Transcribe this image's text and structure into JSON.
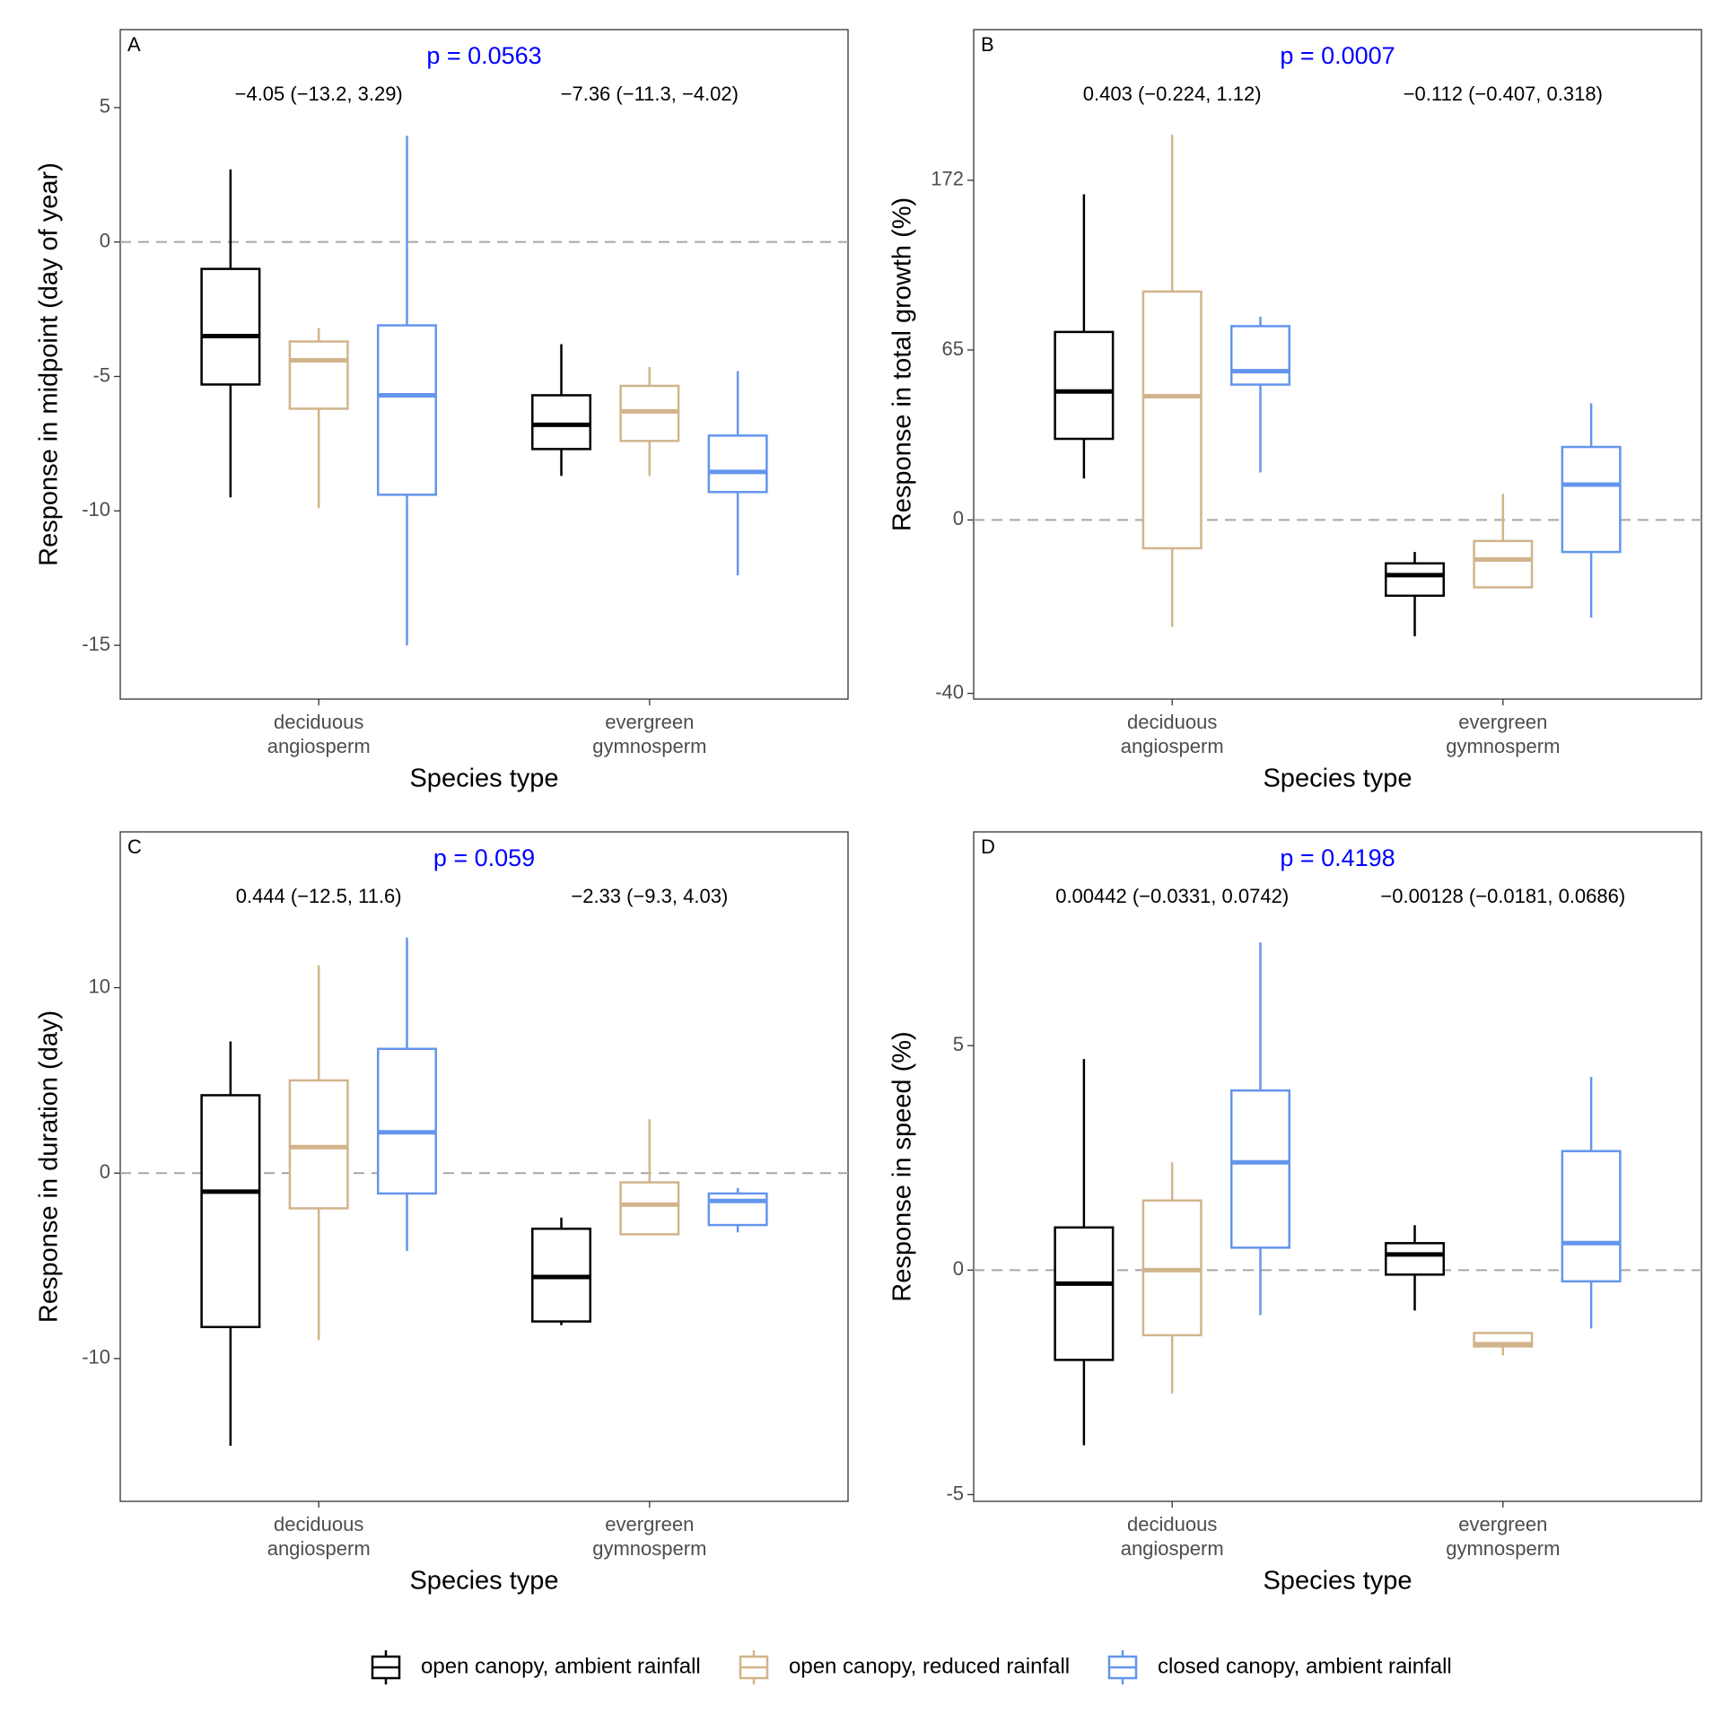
{
  "chart_data": [
    {
      "type": "box",
      "panel": "A",
      "annotation": "p = 0.0563",
      "annotation_color": "#0000ff",
      "group_annotations": [
        "−4.05 (−13.2, 3.29)",
        "−7.36 (−11.3, −4.02)"
      ],
      "xlabel": "Species type",
      "ylabel": "Response in midpoint (day of year)",
      "categories": [
        [
          "deciduous",
          "angiosperm"
        ],
        [
          "evergreen",
          "gymnosperm"
        ]
      ],
      "ylim": [
        -17.0,
        7.9
      ],
      "yticks": [
        -15,
        -10,
        -5,
        0,
        5
      ],
      "hline": 0,
      "series": [
        {
          "name": "open canopy, ambient rainfall",
          "color": "#000000",
          "values": [
            {
              "min": -9.5,
              "q1": -5.3,
              "median": -3.5,
              "q3": -1.0,
              "max": 2.7
            },
            {
              "min": -8.7,
              "q1": -7.7,
              "median": -6.8,
              "q3": -5.7,
              "max": -3.8
            }
          ]
        },
        {
          "name": "open canopy, reduced rainfall",
          "color": "#d2b48c",
          "values": [
            {
              "min": -9.9,
              "q1": -6.2,
              "median": -4.4,
              "q3": -3.7,
              "max": -3.2
            },
            {
              "min": -8.7,
              "q1": -7.4,
              "median": -6.3,
              "q3": -5.35,
              "max": -4.65
            }
          ]
        },
        {
          "name": "closed canopy, ambient rainfall",
          "color": "#6495ed",
          "values": [
            {
              "min": -15.0,
              "q1": -9.4,
              "median": -5.7,
              "q3": -3.1,
              "max": 3.95
            },
            {
              "min": -12.4,
              "q1": -9.3,
              "median": -8.55,
              "q3": -7.2,
              "max": -4.8
            }
          ]
        }
      ]
    },
    {
      "type": "box",
      "panel": "B",
      "annotation": "p = 0.0007",
      "annotation_color": "#0000ff",
      "group_annotations": [
        "0.403 (−0.224, 1.12)",
        "−0.112 (−0.407, 0.318)"
      ],
      "xlabel": "Species type",
      "ylabel": "Response in total growth (%)",
      "categories": [
        [
          "deciduous",
          "angiosperm"
        ],
        [
          "evergreen",
          "gymnosperm"
        ]
      ],
      "yscale": "log",
      "yshift": 100,
      "ylim": [
        -41,
        324
      ],
      "yticks": [
        -40,
        0,
        65,
        172
      ],
      "hline": 0,
      "series": [
        {
          "name": "open canopy, ambient rainfall",
          "color": "#000000",
          "values": [
            {
              "min": 13,
              "q1": 27,
              "median": 46,
              "q3": 74,
              "max": 161
            },
            {
              "min": -29,
              "q1": -20,
              "median": -15,
              "q3": -12,
              "max": -9
            }
          ]
        },
        {
          "name": "open canopy, reduced rainfall",
          "color": "#d2b48c",
          "values": [
            {
              "min": -27,
              "q1": -8,
              "median": 44,
              "q3": 96,
              "max": 211
            },
            {
              "min": -18,
              "q1": -18,
              "median": -11,
              "q3": -6,
              "max": 8
            }
          ]
        },
        {
          "name": "closed canopy, ambient rainfall",
          "color": "#6495ed",
          "values": [
            {
              "min": 15,
              "q1": 49,
              "median": 55,
              "q3": 77,
              "max": 82
            },
            {
              "min": -25,
              "q1": -9,
              "median": 11,
              "q3": 24,
              "max": 41
            }
          ]
        }
      ]
    },
    {
      "type": "box",
      "panel": "C",
      "annotation": "p = 0.059",
      "annotation_color": "#0000ff",
      "group_annotations": [
        "0.444 (−12.5, 11.6)",
        "−2.33 (−9.3, 4.03)"
      ],
      "xlabel": "Species type",
      "ylabel": "Response in duration (day)",
      "categories": [
        [
          "deciduous",
          "angiosperm"
        ],
        [
          "evergreen",
          "gymnosperm"
        ]
      ],
      "ylim": [
        -17.7,
        18.4
      ],
      "yticks": [
        -10,
        0,
        10
      ],
      "hline": 0,
      "series": [
        {
          "name": "open canopy, ambient rainfall",
          "color": "#000000",
          "values": [
            {
              "min": -14.7,
              "q1": -8.3,
              "median": -1.0,
              "q3": 4.2,
              "max": 7.1
            },
            {
              "min": -8.2,
              "q1": -8.0,
              "median": -5.6,
              "q3": -3.0,
              "max": -2.4
            }
          ]
        },
        {
          "name": "open canopy, reduced rainfall",
          "color": "#d2b48c",
          "values": [
            {
              "min": -9.0,
              "q1": -1.9,
              "median": 1.4,
              "q3": 5.0,
              "max": 11.2
            },
            {
              "min": -3.3,
              "q1": -3.3,
              "median": -1.7,
              "q3": -0.5,
              "max": 2.9
            }
          ]
        },
        {
          "name": "closed canopy, ambient rainfall",
          "color": "#6495ed",
          "values": [
            {
              "min": -4.2,
              "q1": -1.1,
              "median": 2.2,
              "q3": 6.7,
              "max": 12.7
            },
            {
              "min": -3.2,
              "q1": -2.8,
              "median": -1.5,
              "q3": -1.1,
              "max": -0.8
            }
          ]
        }
      ]
    },
    {
      "type": "box",
      "panel": "D",
      "annotation": "p = 0.4198",
      "annotation_color": "#0000ff",
      "group_annotations": [
        "0.00442 (−0.0331, 0.0742)",
        "−0.00128 (−0.0181, 0.0686)"
      ],
      "xlabel": "Species type",
      "ylabel": "Response in speed (%)",
      "categories": [
        [
          "deciduous",
          "angiosperm"
        ],
        [
          "evergreen",
          "gymnosperm"
        ]
      ],
      "ylim": [
        -5.15,
        9.76
      ],
      "yticks": [
        -5,
        0,
        5
      ],
      "hline": 0,
      "series": [
        {
          "name": "open canopy, ambient rainfall",
          "color": "#000000",
          "values": [
            {
              "min": -3.9,
              "q1": -2.0,
              "median": -0.3,
              "q3": 0.95,
              "max": 4.7
            },
            {
              "min": -0.9,
              "q1": -0.1,
              "median": 0.35,
              "q3": 0.6,
              "max": 1.0
            }
          ]
        },
        {
          "name": "open canopy, reduced rainfall",
          "color": "#d2b48c",
          "values": [
            {
              "min": -2.75,
              "q1": -1.45,
              "median": 0,
              "q3": 1.55,
              "max": 2.4
            },
            {
              "min": -1.9,
              "q1": -1.7,
              "median": -1.65,
              "q3": -1.4,
              "max": -1.4
            }
          ]
        },
        {
          "name": "closed canopy, ambient rainfall",
          "color": "#6495ed",
          "values": [
            {
              "min": -1.0,
              "q1": 0.5,
              "median": 2.4,
              "q3": 4.0,
              "max": 7.3
            },
            {
              "min": -1.3,
              "q1": -0.25,
              "median": 0.6,
              "q3": 2.65,
              "max": 4.3
            }
          ]
        }
      ]
    }
  ]
}
